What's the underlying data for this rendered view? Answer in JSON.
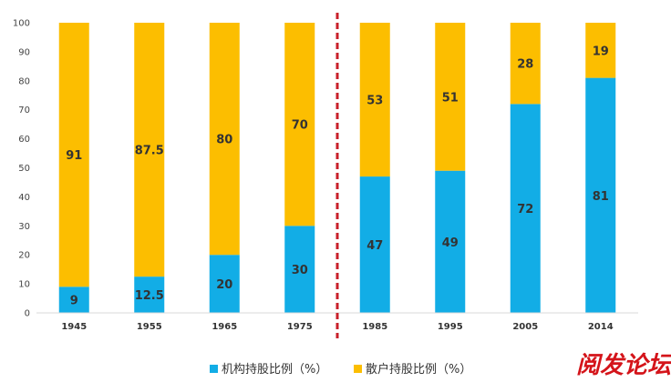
{
  "chart_data": {
    "type": "bar",
    "stacked": true,
    "categories": [
      "1945",
      "1955",
      "1965",
      "1975",
      "1985",
      "1995",
      "2005",
      "2014"
    ],
    "series": [
      {
        "name": "机构持股比例（%）",
        "color": "#12ade6",
        "values": [
          9,
          12.5,
          20,
          30,
          47,
          49,
          72,
          81
        ]
      },
      {
        "name": "散户持股比例（%）",
        "color": "#fcbe00",
        "values": [
          91,
          87.5,
          80,
          70,
          53,
          51,
          28,
          19
        ]
      }
    ],
    "ylim": [
      0,
      100
    ],
    "yticks": [
      0,
      10,
      20,
      30,
      40,
      50,
      60,
      70,
      80,
      90,
      100
    ],
    "grid": false,
    "legend": "bottom",
    "divider_between": [
      "1975",
      "1985"
    ],
    "divider_color": "#c8202a"
  },
  "watermark": "阅发论坛"
}
